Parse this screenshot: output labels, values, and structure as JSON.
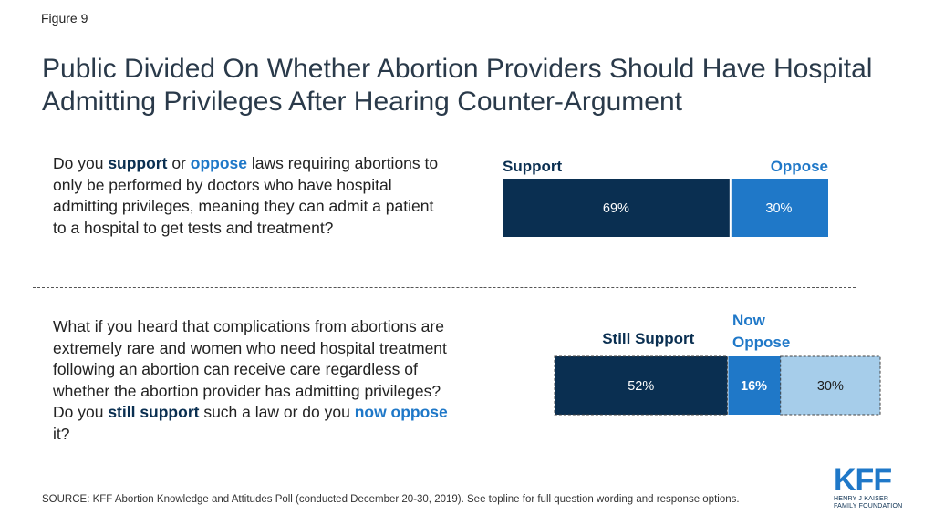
{
  "figure_label": "Figure 9",
  "title": "Public Divided On Whether Abortion Providers Should Have Hospital Admitting Privileges After Hearing Counter-Argument",
  "questions": {
    "q1": {
      "pre": "Do you ",
      "kw1": "support",
      "mid": " or ",
      "kw2": "oppose",
      "post": " laws requiring abortions to only be performed by doctors who have hospital admitting privileges, meaning they can admit a patient to a hospital to get tests and treatment?"
    },
    "q2": {
      "pre": "What if you heard that complications from abortions are extremely rare and women who need hospital treatment following an abortion can receive care regardless of whether the abortion provider has admitting privileges? Do you ",
      "kw1": "still support",
      "mid": " such a law or do you ",
      "kw2": "now oppose",
      "post": " it?"
    }
  },
  "source": "SOURCE: KFF Abortion Knowledge and Attitudes Poll (conducted December 20-30, 2019). See topline for full question wording and response options.",
  "logo": {
    "main": "KFF",
    "sub_line1": "HENRY J KAISER",
    "sub_line2": "FAMILY FOUNDATION"
  },
  "colors": {
    "support": "#0a2f51",
    "oppose": "#1f78c8",
    "oppose_light": "#a6cdea",
    "support_label": "#0a2f51",
    "oppose_label": "#1f78c8"
  },
  "chart_data": [
    {
      "type": "bar",
      "orientation": "horizontal-stacked",
      "series": [
        {
          "name": "Support",
          "values": [
            69
          ],
          "value_labels": [
            "69%"
          ]
        },
        {
          "name": "Oppose",
          "values": [
            30
          ],
          "value_labels": [
            "30%"
          ]
        }
      ]
    },
    {
      "type": "bar",
      "orientation": "horizontal-stacked",
      "series": [
        {
          "name": "Still Support",
          "values": [
            52
          ],
          "value_labels": [
            "52%"
          ]
        },
        {
          "name": "Now Oppose",
          "values": [
            16
          ],
          "value_labels": [
            "16%"
          ]
        },
        {
          "name": "",
          "values": [
            30
          ],
          "value_labels": [
            "30%"
          ]
        }
      ]
    }
  ]
}
